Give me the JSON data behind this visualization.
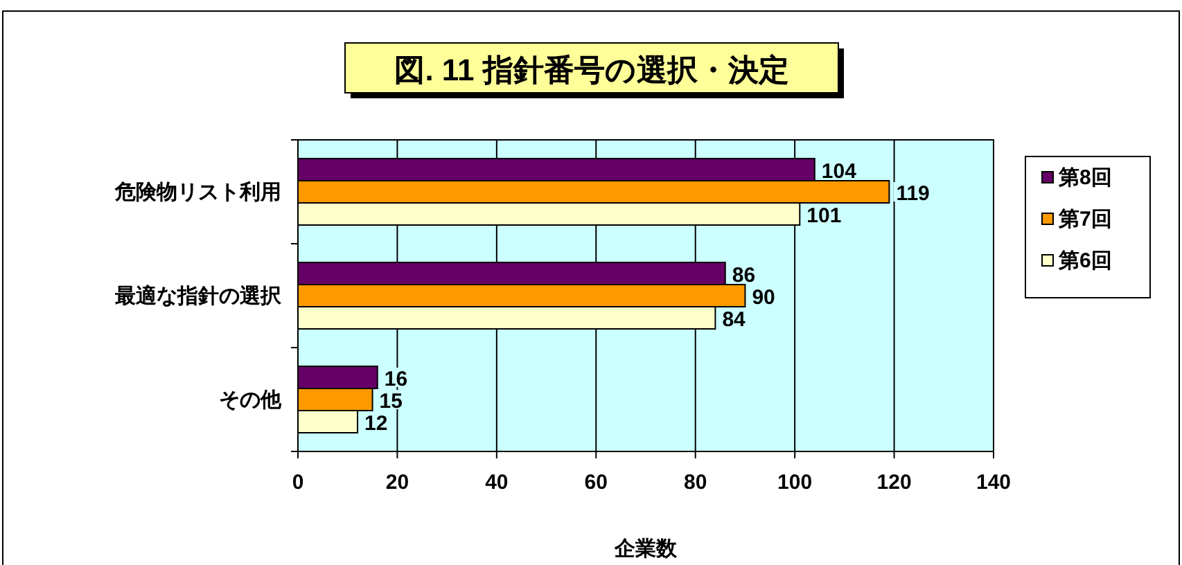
{
  "chart_data": {
    "type": "bar",
    "orientation": "horizontal",
    "title": "図. 11 指針番号の選択・決定",
    "xlabel": "企業数",
    "categories": [
      "危険物リスト利用",
      "最適な指針の選択",
      "その他"
    ],
    "series": [
      {
        "name": "第8回",
        "color": "#660066",
        "values": [
          104,
          86,
          16
        ]
      },
      {
        "name": "第7回",
        "color": "#ff9900",
        "values": [
          119,
          90,
          15
        ]
      },
      {
        "name": "第6回",
        "color": "#ffffcc",
        "values": [
          101,
          84,
          12
        ]
      }
    ],
    "xlim": [
      0,
      140
    ],
    "xticks": [
      0,
      20,
      40,
      60,
      80,
      100,
      120,
      140
    ],
    "grid": "x",
    "legend": "right",
    "data_labels": true
  }
}
